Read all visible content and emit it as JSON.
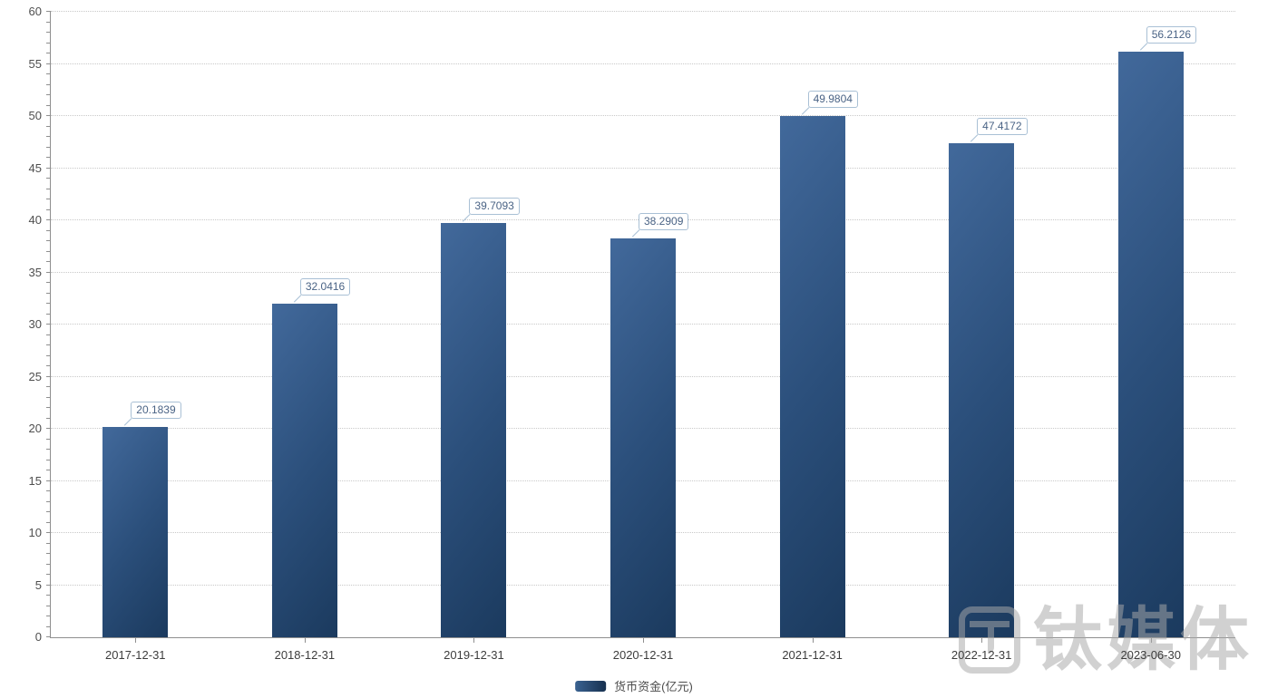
{
  "chart_data": {
    "type": "bar",
    "title": "",
    "categories": [
      "2017-12-31",
      "2018-12-31",
      "2019-12-31",
      "2020-12-31",
      "2021-12-31",
      "2022-12-31",
      "2023-06-30"
    ],
    "series": [
      {
        "name": "货币资金(亿元)",
        "values": [
          20.1839,
          32.0416,
          39.7093,
          38.2909,
          49.9804,
          47.4172,
          56.2126
        ]
      }
    ],
    "value_labels": [
      "20.1839",
      "32.0416",
      "39.7093",
      "38.2909",
      "49.9804",
      "47.4172",
      "56.2126"
    ],
    "xlabel": "",
    "ylabel": "",
    "ylim": [
      0,
      60
    ],
    "y_tick_interval": 5,
    "y_minor_tick_interval": 1,
    "y_tick_labels": [
      "0",
      "5",
      "10",
      "15",
      "20",
      "25",
      "30",
      "35",
      "40",
      "45",
      "50",
      "55",
      "60"
    ],
    "grid": "horizontal-dotted",
    "legend_position": "bottom-center"
  },
  "legend": {
    "label": "货币资金(亿元)"
  },
  "watermark": {
    "text": "钛媒体"
  },
  "colors": {
    "bar_gradient_light": "#42699b",
    "bar_gradient_mid": "#2b4f7b",
    "bar_gradient_dark": "#1b3a5e",
    "value_label_border": "#a9c0d5",
    "value_label_text": "#4a6385",
    "axis_line": "#8f8f8f",
    "gridline": "#c9c9c9",
    "y_label_text": "#4f4f4f",
    "x_label_text": "#3d3d3d",
    "legend_text": "#4c4c4c",
    "watermark_gray": "#a9a9a9"
  }
}
